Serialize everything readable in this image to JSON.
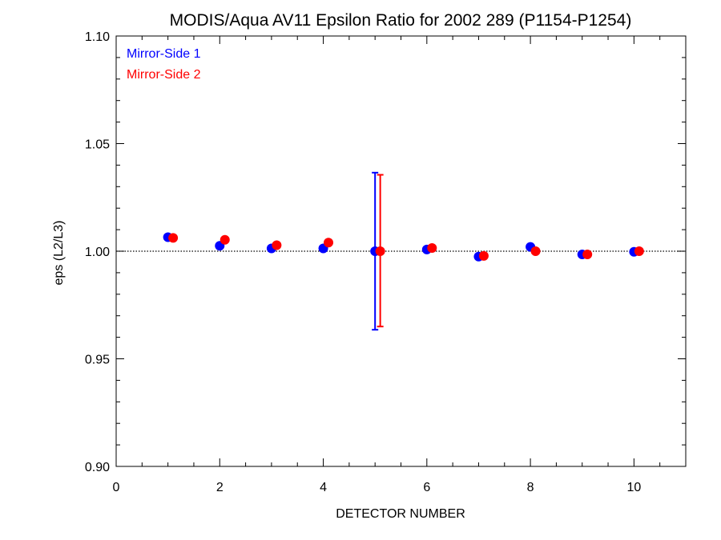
{
  "chart_data": {
    "type": "scatter",
    "title": "MODIS/Aqua AV11 Epsilon Ratio for 2002 289 (P1154-P1254)",
    "xlabel": "DETECTOR NUMBER",
    "ylabel": "eps (L2/L3)",
    "xlim": [
      0,
      11
    ],
    "ylim": [
      0.9,
      1.1
    ],
    "xticks": [
      0,
      2,
      4,
      6,
      8,
      10
    ],
    "xtick_labels": [
      "0",
      "2",
      "4",
      "6",
      "8",
      "10"
    ],
    "yticks": [
      0.9,
      0.95,
      1.0,
      1.05,
      1.1
    ],
    "ytick_labels": [
      "0.90",
      "0.95",
      "1.00",
      "1.05",
      "1.10"
    ],
    "reference_line": 1.0,
    "legend_position": "top-left",
    "series": [
      {
        "name": "Mirror-Side 1",
        "color": "#0000ff",
        "x": [
          1,
          2,
          3,
          4,
          5,
          6,
          7,
          8,
          9,
          10
        ],
        "y": [
          1.0065,
          1.0025,
          1.0013,
          1.0013,
          1.0,
          1.0008,
          0.9975,
          1.002,
          0.9985,
          0.9997
        ],
        "error_bars": [
          {
            "x": 5,
            "low": 0.9635,
            "high": 1.0365
          }
        ]
      },
      {
        "name": "Mirror-Side 2",
        "color": "#ff0000",
        "x": [
          1.1,
          2.1,
          3.1,
          4.1,
          5.1,
          6.1,
          7.1,
          8.1,
          9.1,
          10.1
        ],
        "y": [
          1.0062,
          1.0053,
          1.0028,
          1.004,
          1.0,
          1.0015,
          0.9978,
          1.0,
          0.9985,
          1.0
        ],
        "error_bars": [
          {
            "x": 5.1,
            "low": 0.965,
            "high": 1.0355
          }
        ]
      }
    ]
  }
}
